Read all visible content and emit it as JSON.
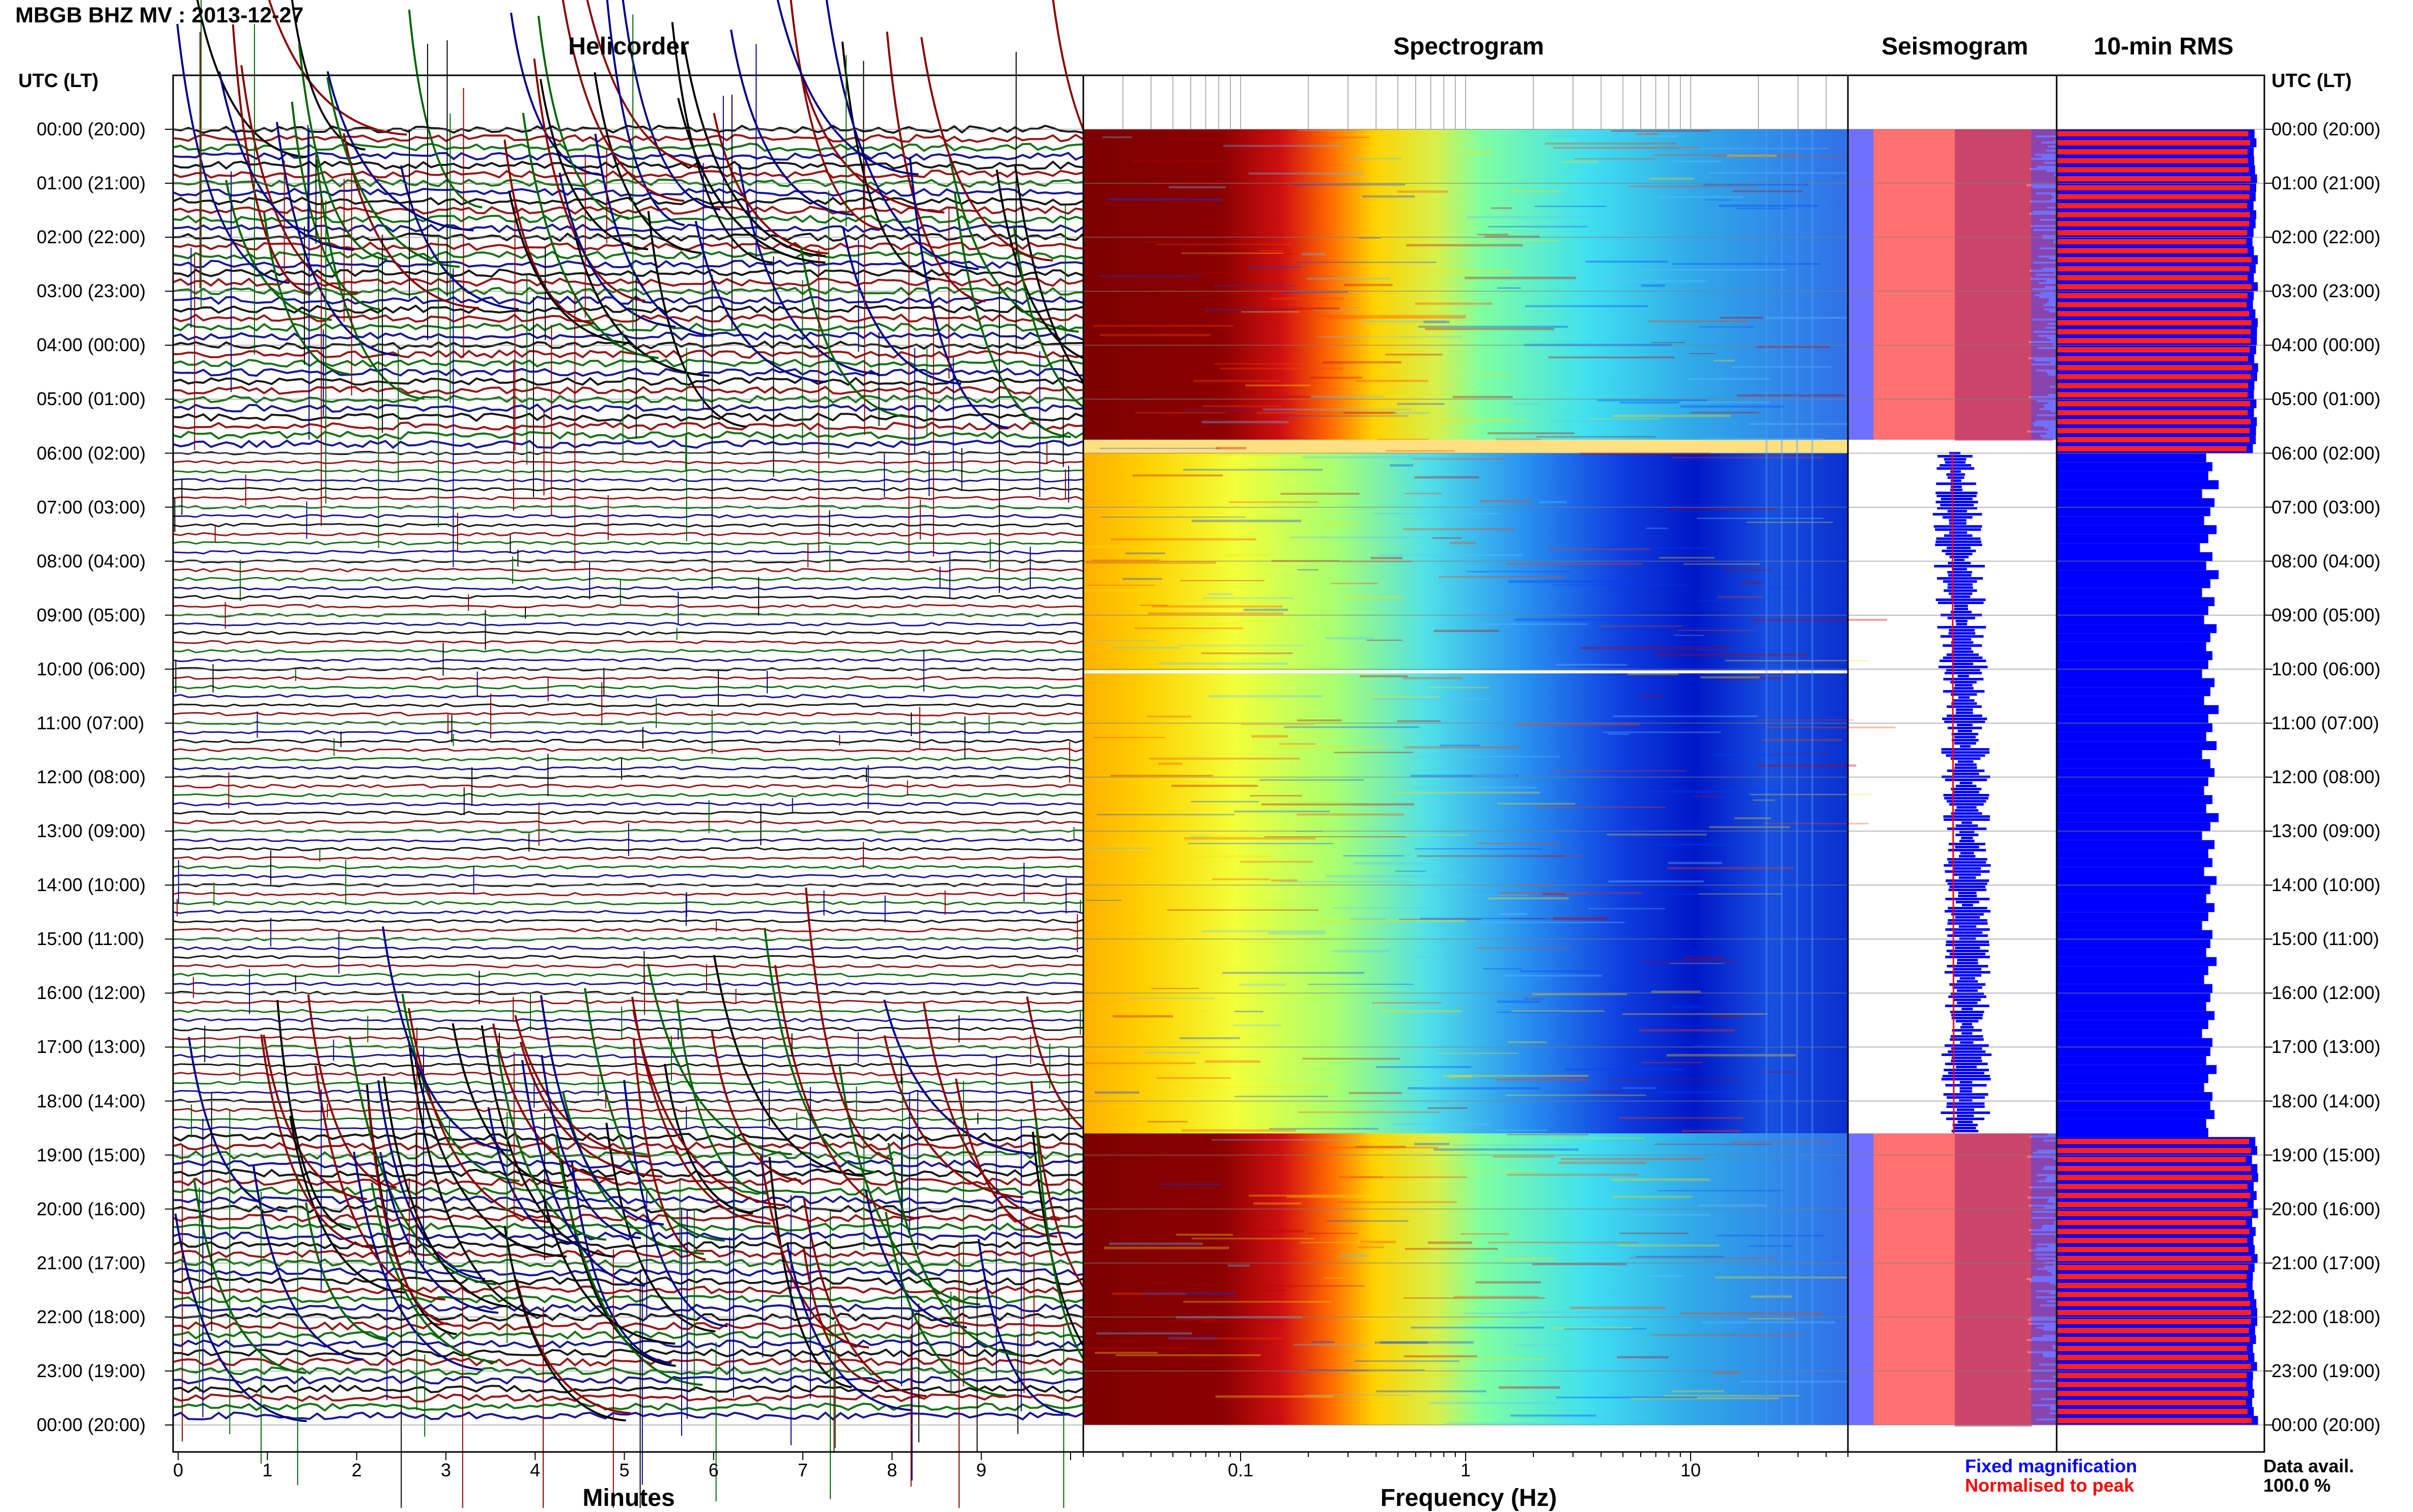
{
  "header": {
    "title": "MBGB BHZ MV : 2013-12-27"
  },
  "panels": {
    "helicorder": "Helicorder",
    "spectrogram": "Spectrogram",
    "seismogram": "Seismogram",
    "rms": "10-min RMS"
  },
  "axis": {
    "utc_label_left": "UTC (LT)",
    "utc_label_right": "UTC (LT)",
    "minutes_label": "Minutes",
    "frequency_label": "Frequency (Hz)"
  },
  "legend": {
    "fixed": "Fixed magnification",
    "normalised": "Normalised to peak",
    "fixed_color": "#0000ff",
    "normalised_color": "#ff0000"
  },
  "availability": {
    "label": "Data avail.",
    "value": "100.0 %"
  },
  "colors": {
    "heli_traces": [
      "#000000",
      "#8b0000",
      "#006400",
      "#00008b"
    ],
    "spectro_hot": "#8b0000",
    "spectro_cold": "#0000cd",
    "seis_blue": "#0000ff",
    "seis_red": "#ff0000",
    "seis_purple": "#8b008b"
  },
  "chart_data": {
    "type": "heatmap",
    "time_labels": [
      "00:00 (20:00)",
      "01:00 (21:00)",
      "02:00 (22:00)",
      "03:00 (23:00)",
      "04:00 (00:00)",
      "05:00 (01:00)",
      "06:00 (02:00)",
      "07:00 (03:00)",
      "08:00 (04:00)",
      "09:00 (05:00)",
      "10:00 (06:00)",
      "11:00 (07:00)",
      "12:00 (08:00)",
      "13:00 (09:00)",
      "14:00 (10:00)",
      "15:00 (11:00)",
      "16:00 (12:00)",
      "17:00 (13:00)",
      "18:00 (14:00)",
      "19:00 (15:00)",
      "20:00 (16:00)",
      "21:00 (17:00)",
      "22:00 (18:00)",
      "23:00 (19:00)",
      "00:00 (20:00)"
    ],
    "minutes_ticks": [
      "0",
      "1",
      "2",
      "3",
      "4",
      "5",
      "6",
      "7",
      "8",
      "9"
    ],
    "minutes_range": [
      0,
      10
    ],
    "frequency_ticks": [
      "0.1",
      "1",
      "10"
    ],
    "frequency_range": [
      0.02,
      50
    ],
    "frequency_scale": "log",
    "time_range_hours": [
      0,
      24
    ],
    "quiet_period_hours": [
      6.0,
      18.6
    ],
    "noisy_periods_hours": [
      [
        0,
        5.75
      ],
      [
        18.65,
        24
      ]
    ],
    "rms": {
      "fixed_fraction_noisy": 0.97,
      "fixed_fraction_quiet": [
        0.72,
        0.75,
        0.73,
        0.78,
        0.7,
        0.76,
        0.74,
        0.71,
        0.77,
        0.73,
        0.69,
        0.75,
        0.72,
        0.78,
        0.74,
        0.7,
        0.76,
        0.73,
        0.71,
        0.77,
        0.74,
        0.72,
        0.75,
        0.73,
        0.7,
        0.76,
        0.74,
        0.71,
        0.78,
        0.73,
        0.75,
        0.72,
        0.77,
        0.7,
        0.74,
        0.76,
        0.73,
        0.71,
        0.75,
        0.72,
        0.78,
        0.74,
        0.7,
        0.76,
        0.73,
        0.75,
        0.71,
        0.77,
        0.74,
        0.72,
        0.76,
        0.73,
        0.7,
        0.75,
        0.74,
        0.72,
        0.77,
        0.73,
        0.71,
        0.75,
        0.74,
        0.72,
        0.76,
        0.73,
        0.7,
        0.75,
        0.74,
        0.72,
        0.77,
        0.73,
        0.71,
        0.75,
        0.74,
        0.76,
        0.72,
        0.73
      ]
    }
  }
}
